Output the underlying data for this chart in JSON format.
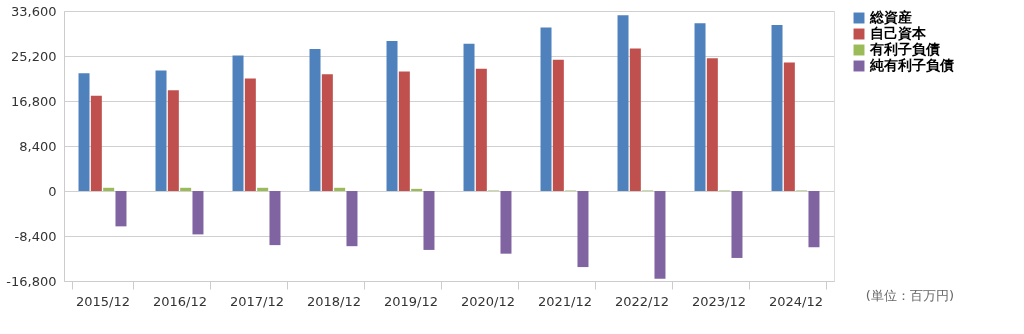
{
  "chart_data": {
    "type": "bar",
    "categories": [
      "2015/12",
      "2016/12",
      "2017/12",
      "2018/12",
      "2019/12",
      "2020/12",
      "2021/12",
      "2022/12",
      "2023/12",
      "2024/12"
    ],
    "series": [
      {
        "name": "総資産",
        "color": "#4f81bd",
        "values": [
          22000,
          22500,
          25300,
          26500,
          28000,
          27500,
          30500,
          32800,
          31300,
          31000
        ]
      },
      {
        "name": "自己資本",
        "color": "#c0504d",
        "values": [
          17800,
          18800,
          21000,
          21800,
          22300,
          22800,
          24500,
          26600,
          24800,
          24000
        ]
      },
      {
        "name": "有利子負債",
        "color": "#9bbb59",
        "values": [
          600,
          600,
          600,
          600,
          400,
          100,
          100,
          100,
          100,
          100
        ]
      },
      {
        "name": "純有利子負債",
        "color": "#8064a2",
        "values": [
          -6600,
          -8100,
          -10100,
          -10300,
          -11000,
          -11700,
          -14200,
          -16400,
          -12500,
          -10500
        ]
      }
    ],
    "ylim": [
      -16800,
      33600
    ],
    "yticks": [
      {
        "value": -16800,
        "label": "-16,800"
      },
      {
        "value": -8400,
        "label": "-8,400"
      },
      0,
      {
        "value": 8400,
        "label": "8,400"
      },
      {
        "value": 16800,
        "label": "16,800"
      },
      {
        "value": 25200,
        "label": "25,200"
      },
      {
        "value": 33600,
        "label": "33,600"
      }
    ],
    "grid": "y",
    "legend": "right",
    "annotations": [
      "(単位：百万円)"
    ]
  }
}
